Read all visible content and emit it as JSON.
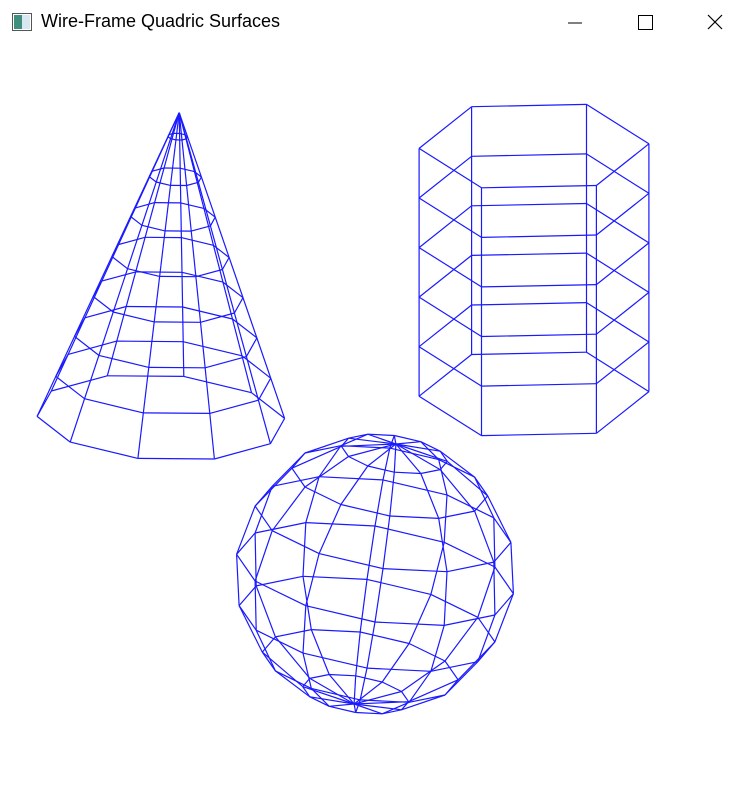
{
  "window": {
    "title": "Wire-Frame Quadric Surfaces",
    "icon": "app-window-icon",
    "controls": [
      "minimize-icon",
      "maximize-icon",
      "close-icon"
    ]
  },
  "scene": {
    "wire_color": "#1a1aff",
    "background": "#ffffff",
    "objects": [
      "cone",
      "cylinder",
      "sphere"
    ]
  }
}
